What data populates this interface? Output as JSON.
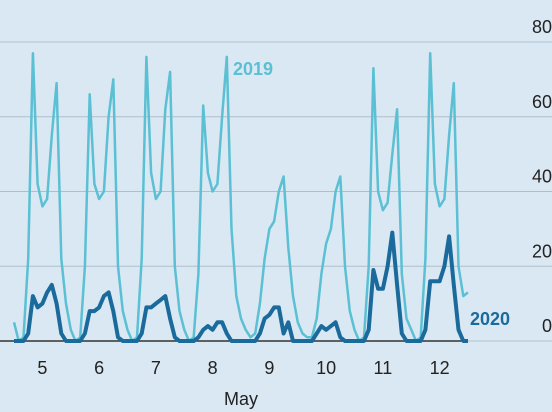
{
  "chart_data": {
    "type": "line",
    "x": [
      0,
      2,
      4,
      6,
      8,
      10,
      12,
      14,
      16,
      18,
      20,
      22,
      24,
      26,
      28,
      30,
      32,
      34,
      36,
      38,
      40,
      42,
      44,
      46,
      48,
      50,
      52,
      54,
      56,
      58,
      60,
      62,
      64,
      66,
      68,
      70,
      72,
      74,
      76,
      78,
      80,
      82,
      84,
      86,
      88,
      90,
      92,
      94,
      96,
      98,
      100,
      102,
      104,
      106,
      108,
      110,
      112,
      114,
      116,
      118,
      120,
      122,
      124,
      126,
      128,
      130,
      132,
      134,
      136,
      138,
      140,
      142,
      144,
      146,
      148,
      150,
      152,
      154,
      156,
      158,
      160,
      162,
      164,
      166,
      168,
      170,
      172,
      174,
      176,
      178,
      180,
      182,
      184,
      186,
      188,
      190,
      192
    ],
    "xlim": [
      0,
      192
    ],
    "xticks": [
      {
        "value": 12,
        "label": "5"
      },
      {
        "value": 36,
        "label": "6"
      },
      {
        "value": 60,
        "label": "7"
      },
      {
        "value": 84,
        "label": "8"
      },
      {
        "value": 108,
        "label": "9"
      },
      {
        "value": 132,
        "label": "10"
      },
      {
        "value": 156,
        "label": "11"
      },
      {
        "value": 180,
        "label": "12"
      }
    ],
    "xlabel": "May",
    "ylim": [
      0,
      80
    ],
    "yticks": [
      0,
      20,
      40,
      60,
      80
    ],
    "grid": true,
    "series": [
      {
        "name": "2019",
        "color": "#5bc0d3",
        "values": [
          5,
          0,
          1,
          22,
          77,
          42,
          36,
          38,
          55,
          69,
          22,
          10,
          3,
          0,
          1,
          20,
          66,
          42,
          38,
          40,
          60,
          70,
          20,
          8,
          3,
          0,
          1,
          22,
          76,
          45,
          38,
          40,
          62,
          72,
          20,
          8,
          3,
          0,
          1,
          18,
          63,
          45,
          40,
          42,
          60,
          76,
          30,
          12,
          6,
          3,
          1,
          2,
          10,
          22,
          30,
          32,
          40,
          44,
          25,
          12,
          5,
          2,
          1,
          1,
          6,
          18,
          26,
          30,
          40,
          44,
          20,
          8,
          3,
          0,
          1,
          20,
          73,
          40,
          35,
          37,
          50,
          62,
          18,
          6,
          3,
          0,
          1,
          22,
          77,
          42,
          36,
          38,
          55,
          69,
          20,
          12,
          13
        ]
      },
      {
        "name": "2020",
        "color": "#1a6a9c",
        "values": [
          0,
          0,
          0,
          2,
          12,
          9,
          10,
          13,
          15,
          10,
          2,
          0,
          0,
          0,
          0,
          2,
          8,
          8,
          9,
          12,
          13,
          8,
          1,
          0,
          0,
          0,
          0,
          2,
          9,
          9,
          10,
          11,
          12,
          6,
          1,
          0,
          0,
          0,
          0,
          1,
          3,
          4,
          3,
          5,
          5,
          2,
          0,
          0,
          0,
          0,
          0,
          0,
          2,
          6,
          7,
          9,
          9,
          2,
          5,
          0,
          0,
          0,
          0,
          0,
          2,
          4,
          3,
          4,
          5,
          1,
          0,
          0,
          0,
          0,
          0,
          3,
          19,
          14,
          14,
          20,
          29,
          15,
          2,
          0,
          0,
          0,
          0,
          3,
          16,
          16,
          16,
          20,
          28,
          15,
          3,
          0,
          0
        ]
      }
    ]
  }
}
